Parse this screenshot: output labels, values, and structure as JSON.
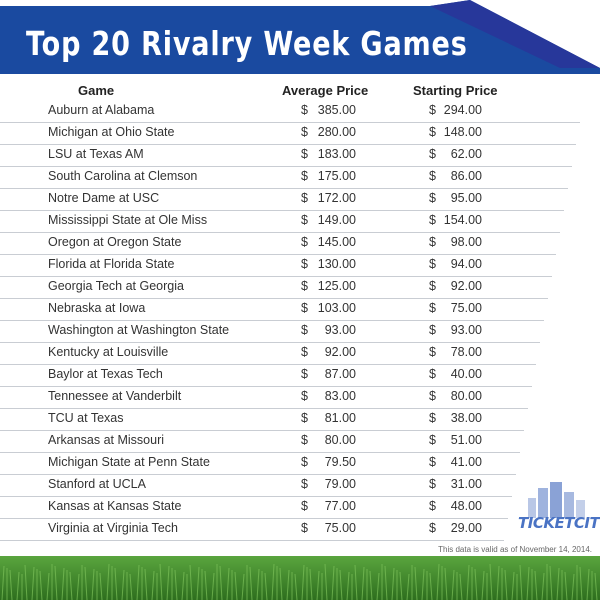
{
  "header": {
    "title": "Top 20 Rivalry Week Games"
  },
  "columns": {
    "game": "Game",
    "average": "Average Price",
    "starting": "Starting Price"
  },
  "currency_symbol": "$",
  "footnote": "This data is valid as of November 14, 2014.",
  "logo": {
    "text": "TICKETCITY",
    "icon": "city-skyline-icon"
  },
  "colors": {
    "banner": "#1a4aa0",
    "accent": "#4a73c4",
    "grass": "#3f8a2c",
    "row_line": "#c9cdd3"
  },
  "chart_data": {
    "type": "table",
    "title": "Top 20 Rivalry Week Games",
    "columns": [
      "Game",
      "Average Price",
      "Starting Price"
    ],
    "rows": [
      {
        "game": "Auburn at Alabama",
        "average": "385.00",
        "starting": "294.00"
      },
      {
        "game": "Michigan at Ohio State",
        "average": "280.00",
        "starting": "148.00"
      },
      {
        "game": "LSU at Texas AM",
        "average": "183.00",
        "starting": "62.00"
      },
      {
        "game": "South Carolina at Clemson",
        "average": "175.00",
        "starting": "86.00"
      },
      {
        "game": "Notre Dame at USC",
        "average": "172.00",
        "starting": "95.00"
      },
      {
        "game": "Mississippi State at Ole Miss",
        "average": "149.00",
        "starting": "154.00"
      },
      {
        "game": "Oregon at Oregon State",
        "average": "145.00",
        "starting": "98.00"
      },
      {
        "game": "Florida at Florida State",
        "average": "130.00",
        "starting": "94.00"
      },
      {
        "game": "Georgia Tech at Georgia",
        "average": "125.00",
        "starting": "92.00"
      },
      {
        "game": "Nebraska at Iowa",
        "average": "103.00",
        "starting": "75.00"
      },
      {
        "game": "Washington at Washington State",
        "average": "93.00",
        "starting": "93.00"
      },
      {
        "game": "Kentucky at Louisville",
        "average": "92.00",
        "starting": "78.00"
      },
      {
        "game": "Baylor at Texas Tech",
        "average": "87.00",
        "starting": "40.00"
      },
      {
        "game": "Tennessee at Vanderbilt",
        "average": "83.00",
        "starting": "80.00"
      },
      {
        "game": "TCU at Texas",
        "average": "81.00",
        "starting": "38.00"
      },
      {
        "game": "Arkansas at Missouri",
        "average": "80.00",
        "starting": "51.00"
      },
      {
        "game": "Michigan State at Penn State",
        "average": "79.50",
        "starting": "41.00"
      },
      {
        "game": "Stanford at UCLA",
        "average": "79.00",
        "starting": "31.00"
      },
      {
        "game": "Kansas at Kansas State",
        "average": "77.00",
        "starting": "48.00"
      },
      {
        "game": "Virginia at Virginia Tech",
        "average": "75.00",
        "starting": "29.00"
      }
    ]
  }
}
